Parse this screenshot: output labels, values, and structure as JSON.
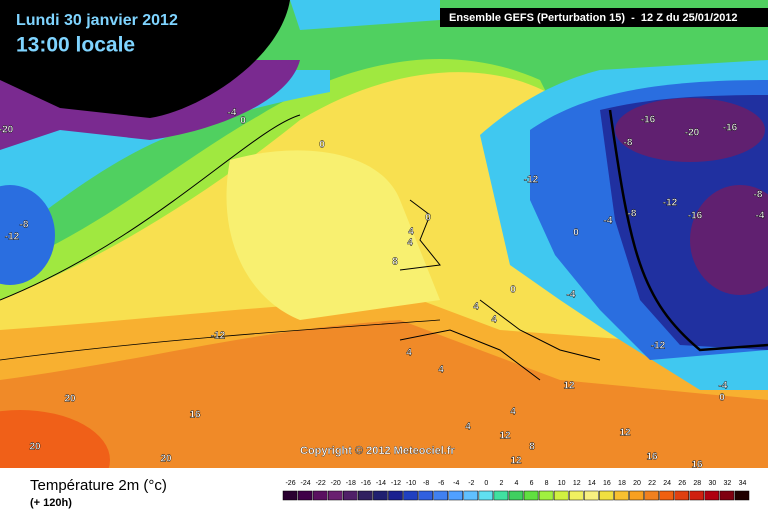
{
  "header": {
    "date": "Lundi 30 janvier 2012",
    "time": "13:00 locale",
    "model": "Ensemble GEFS (Perturbation 15)  -  12 Z du 25/01/2012"
  },
  "map": {
    "copyright": "Copyright © 2012 Meteociel.fr",
    "contour_labels": [
      0,
      0,
      -4,
      -12,
      -8,
      -20,
      -16,
      -20,
      -16,
      -8,
      -12,
      -12,
      -16,
      -8,
      -4,
      0,
      0,
      4,
      4,
      8,
      4,
      4,
      0,
      -4,
      -12,
      -4,
      0,
      4,
      4,
      12,
      4,
      4,
      12,
      8,
      12,
      16,
      16,
      12,
      -12,
      16,
      20,
      20,
      20,
      -8,
      -4
    ]
  },
  "legend": {
    "title": "Température 2m (°c)",
    "lead_time": "(+ 120h)",
    "labels": [
      -26,
      -24,
      -22,
      -20,
      -18,
      -16,
      -14,
      -12,
      -10,
      -8,
      -6,
      -4,
      -2,
      0,
      2,
      4,
      6,
      8,
      10,
      12,
      14,
      16,
      18,
      20,
      22,
      24,
      26,
      28,
      30,
      32,
      34
    ],
    "colors": [
      "#2a0030",
      "#400048",
      "#5a1060",
      "#6a2070",
      "#502068",
      "#302060",
      "#202070",
      "#1a2090",
      "#2040c0",
      "#3060e0",
      "#4080f0",
      "#50a0ff",
      "#60c0ff",
      "#60e0f0",
      "#40e0a0",
      "#40d060",
      "#60e040",
      "#a0f040",
      "#d0f040",
      "#f0f060",
      "#f8f080",
      "#f0e040",
      "#f8c030",
      "#f8a020",
      "#f08020",
      "#f06010",
      "#e04010",
      "#d02010",
      "#b00010",
      "#800010",
      "#200000"
    ]
  }
}
